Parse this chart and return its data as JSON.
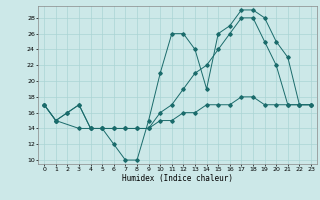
{
  "xlabel": "Humidex (Indice chaleur)",
  "bg_color": "#cce8e8",
  "grid_color": "#aad4d4",
  "line_color": "#1a6b6b",
  "xlim": [
    -0.5,
    23.5
  ],
  "ylim": [
    9.5,
    29.5
  ],
  "yticks": [
    10,
    12,
    14,
    16,
    18,
    20,
    22,
    24,
    26,
    28
  ],
  "xticks": [
    0,
    1,
    2,
    3,
    4,
    5,
    6,
    7,
    8,
    9,
    10,
    11,
    12,
    13,
    14,
    15,
    16,
    17,
    18,
    19,
    20,
    21,
    22,
    23
  ],
  "line1_x": [
    0,
    1,
    3,
    4,
    5,
    6,
    7,
    8,
    9,
    10,
    11,
    12,
    13,
    14,
    15,
    16,
    17,
    18,
    19,
    20,
    21,
    22,
    23
  ],
  "line1_y": [
    17,
    15,
    14,
    14,
    14,
    12,
    10,
    10,
    15,
    21,
    26,
    26,
    24,
    19,
    26,
    27,
    29,
    29,
    28,
    25,
    23,
    17,
    17
  ],
  "line2_x": [
    0,
    1,
    2,
    3,
    4,
    5,
    6,
    7,
    8,
    9,
    10,
    11,
    12,
    13,
    14,
    15,
    16,
    17,
    18,
    19,
    20,
    21,
    22,
    23
  ],
  "line2_y": [
    17,
    15,
    16,
    17,
    14,
    14,
    14,
    14,
    14,
    14,
    15,
    15,
    16,
    16,
    17,
    17,
    17,
    18,
    18,
    17,
    17,
    17,
    17,
    17
  ],
  "line3_x": [
    0,
    1,
    2,
    3,
    4,
    5,
    6,
    7,
    8,
    9,
    10,
    11,
    12,
    13,
    14,
    15,
    16,
    17,
    18,
    19,
    20,
    21,
    22,
    23
  ],
  "line3_y": [
    17,
    15,
    16,
    17,
    14,
    14,
    14,
    14,
    14,
    14,
    16,
    17,
    19,
    21,
    22,
    24,
    26,
    28,
    28,
    25,
    22,
    17,
    17,
    17
  ]
}
